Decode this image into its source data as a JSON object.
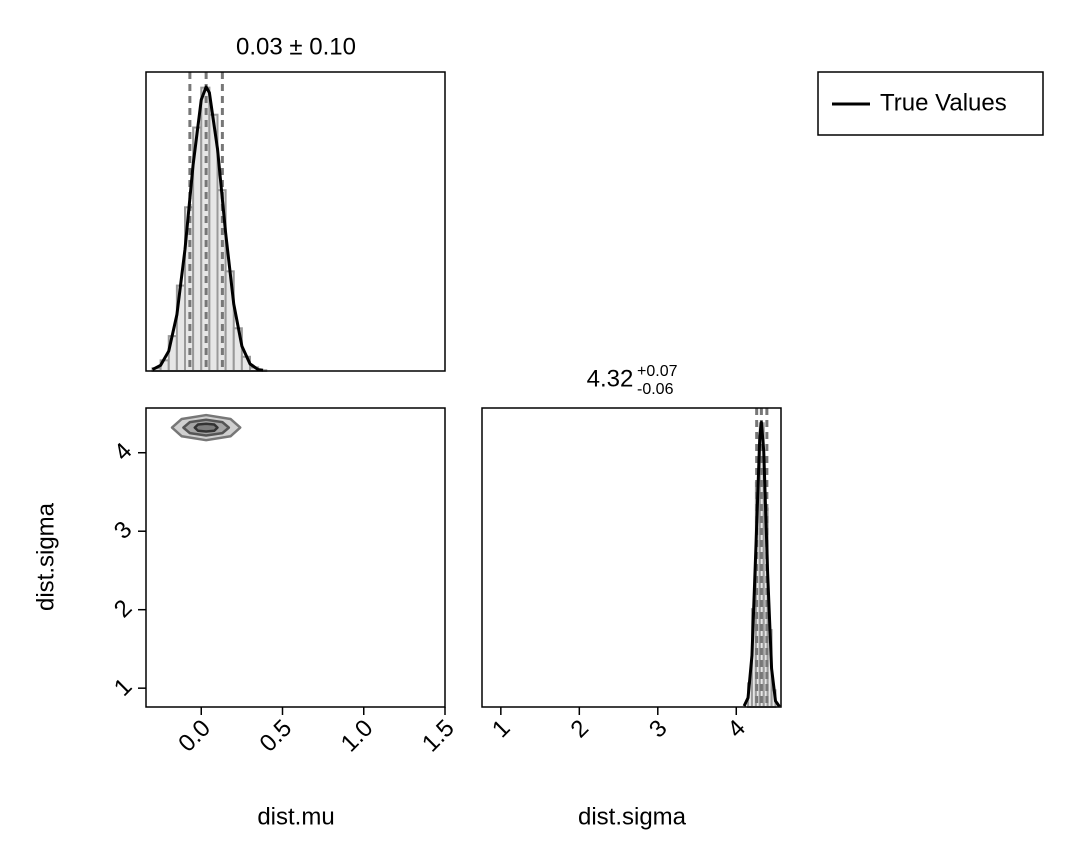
{
  "chart_data": [
    {
      "type": "histogram",
      "title": "0.03 ± 0.10",
      "bins": [
        -0.3,
        -0.25,
        -0.2,
        -0.15,
        -0.1,
        -0.05,
        0,
        0.05,
        0.1,
        0.15,
        0.2,
        0.25,
        0.3,
        0.35,
        0.4
      ],
      "counts": [
        0.04,
        0.15,
        0.49,
        1.2,
        2.3,
        3.42,
        3.98,
        3.6,
        2.54,
        1.4,
        0.6,
        0.2,
        0.05,
        0.01
      ],
      "color": "#e6e6e6",
      "line": {
        "x": [
          -0.3,
          -0.25,
          -0.2,
          -0.15,
          -0.1,
          -0.05,
          0,
          0.03,
          0.05,
          0.1,
          0.15,
          0.2,
          0.25,
          0.3,
          0.35,
          0.38
        ],
        "y": [
          0.02,
          0.08,
          0.28,
          0.79,
          1.71,
          2.9,
          3.81,
          3.99,
          3.91,
          3.12,
          1.94,
          0.94,
          0.35,
          0.1,
          0.02,
          0.01
        ]
      },
      "quantiles": [
        -0.07,
        0.03,
        0.13
      ],
      "xlim": [
        -0.34,
        1.5
      ],
      "ylim": [
        0,
        4.2
      ]
    },
    {
      "type": "contour",
      "xlabel": "dist.mu",
      "ylabel": "dist.sigma",
      "contours": [
        {
          "x": [
            0.24,
            0.18,
            0.03,
            -0.12,
            -0.18,
            -0.12,
            0.03,
            0.18
          ],
          "y": [
            4.32,
            4.43,
            4.48,
            4.43,
            4.32,
            4.21,
            4.16,
            4.21
          ]
        },
        {
          "x": [
            0.17,
            0.13,
            0.03,
            -0.07,
            -0.11,
            -0.07,
            0.03,
            0.13
          ],
          "y": [
            4.32,
            4.39,
            4.42,
            4.39,
            4.32,
            4.25,
            4.22,
            4.25
          ]
        },
        {
          "x": [
            0.1,
            0.08,
            0.03,
            -0.02,
            -0.04,
            -0.02,
            0.03,
            0.08
          ],
          "y": [
            4.32,
            4.36,
            4.37,
            4.36,
            4.32,
            4.28,
            4.27,
            4.28
          ]
        }
      ],
      "xlim": [
        -0.34,
        1.5
      ],
      "ylim": [
        0.76,
        4.57
      ],
      "xticks": [
        {
          "value": 0,
          "label": "0.0"
        },
        0.5,
        {
          "value": 1,
          "label": "1.0"
        },
        1.5
      ],
      "yticks": [
        1,
        2,
        3,
        4
      ]
    },
    {
      "type": "histogram",
      "title": "4.32",
      "title_upper": "+0.07",
      "title_lower": "-0.06",
      "xlabel": "dist.sigma",
      "bins": [
        4.15,
        4.2,
        4.25,
        4.3,
        4.35,
        4.4,
        4.45,
        4.5
      ],
      "counts": [
        0.51,
        2.11,
        4.84,
        6.12,
        4.28,
        1.66,
        0.36
      ],
      "color": "#e6e6e6",
      "line": {
        "x": [
          4.1,
          4.15,
          4.2,
          4.25,
          4.3,
          4.32,
          4.35,
          4.4,
          4.45,
          4.5,
          4.55
        ],
        "y": [
          0.02,
          0.2,
          1.11,
          3.43,
          5.85,
          6.14,
          5.52,
          2.88,
          0.83,
          0.13,
          0.01
        ]
      },
      "quantiles": [
        4.26,
        4.32,
        4.39
      ],
      "xlim": [
        0.76,
        4.57
      ],
      "ylim": [
        0,
        6.45
      ],
      "xticks": [
        1,
        2,
        3,
        4
      ]
    }
  ],
  "legend": {
    "label": "True Values",
    "color": "#000000"
  }
}
